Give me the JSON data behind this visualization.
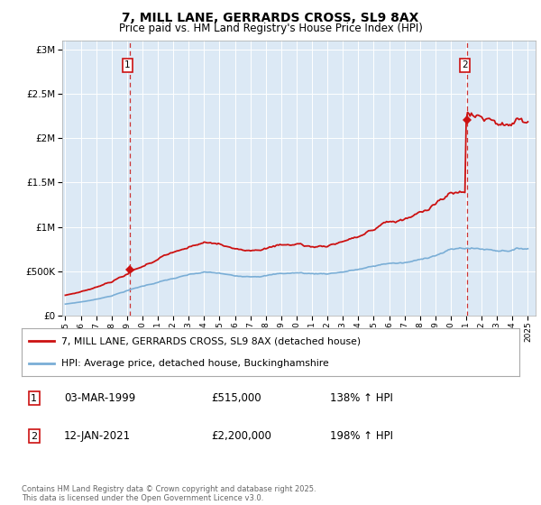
{
  "title": "7, MILL LANE, GERRARDS CROSS, SL9 8AX",
  "subtitle": "Price paid vs. HM Land Registry's House Price Index (HPI)",
  "background_color": "#dce9f5",
  "plot_bg_color": "#dce9f5",
  "y_ticks": [
    0,
    500000,
    1000000,
    1500000,
    2000000,
    2500000,
    3000000
  ],
  "y_tick_labels": [
    "£0",
    "£500K",
    "£1M",
    "£1.5M",
    "£2M",
    "£2.5M",
    "£3M"
  ],
  "ylim": [
    0,
    3100000
  ],
  "x_start_year": 1995,
  "x_end_year": 2025,
  "sale1_year": 1999.17,
  "sale1_price": 515000,
  "sale2_year": 2021.04,
  "sale2_price": 2200000,
  "hpi_line_color": "#7aaed6",
  "price_line_color": "#cc1111",
  "dashed_line_color": "#cc3333",
  "grid_color": "#ffffff",
  "legend_label_price": "7, MILL LANE, GERRARDS CROSS, SL9 8AX (detached house)",
  "legend_label_hpi": "HPI: Average price, detached house, Buckinghamshire",
  "annotation1_date": "03-MAR-1999",
  "annotation1_price": "£515,000",
  "annotation1_hpi": "138% ↑ HPI",
  "annotation2_date": "12-JAN-2021",
  "annotation2_price": "£2,200,000",
  "annotation2_hpi": "198% ↑ HPI",
  "footer": "Contains HM Land Registry data © Crown copyright and database right 2025.\nThis data is licensed under the Open Government Licence v3.0."
}
